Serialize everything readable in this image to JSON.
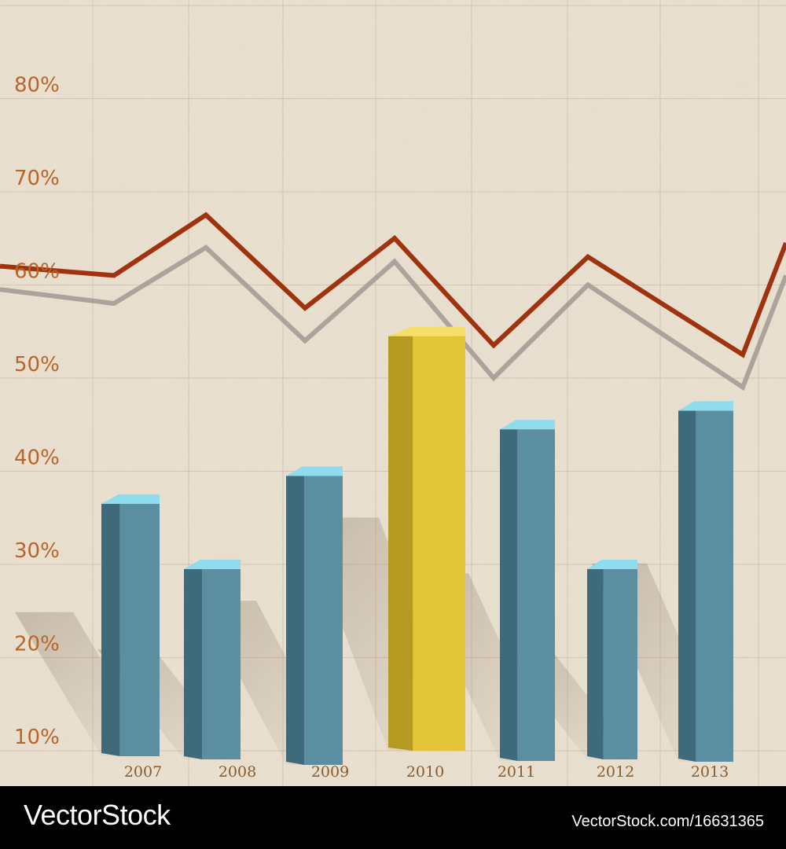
{
  "chart_data": {
    "type": "bar",
    "categories": [
      "2007",
      "2008",
      "2009",
      "2010",
      "2011",
      "2012",
      "2013"
    ],
    "values": [
      36,
      29,
      39,
      54,
      44,
      29,
      46
    ],
    "ylim": [
      10,
      80
    ],
    "yticks": [
      "10%",
      "20%",
      "30%",
      "40%",
      "50%",
      "60%",
      "70%",
      "80%"
    ],
    "highlight_index": 3,
    "bar_color": "#5b8ea1",
    "highlight_color": "#e3c53a",
    "grid": true,
    "lines": [
      {
        "color": "#a0330f",
        "points": [
          [
            0,
            60.5
          ],
          [
            1,
            59.5
          ],
          [
            2,
            66
          ],
          [
            3,
            56
          ],
          [
            4,
            63.5
          ],
          [
            5,
            52
          ],
          [
            6,
            61.5
          ],
          [
            7,
            51
          ],
          [
            8,
            63
          ]
        ]
      },
      {
        "color": "#a09a93",
        "points": [
          [
            0,
            58
          ],
          [
            1,
            56.5
          ],
          [
            2,
            62.5
          ],
          [
            3,
            52.5
          ],
          [
            4,
            61
          ],
          [
            5,
            48.5
          ],
          [
            6,
            58.5
          ],
          [
            7,
            47.5
          ],
          [
            8,
            59.5
          ]
        ]
      }
    ]
  },
  "footer": {
    "logo": "VectorStock",
    "image_id": "VectorStock.com/16631365"
  }
}
